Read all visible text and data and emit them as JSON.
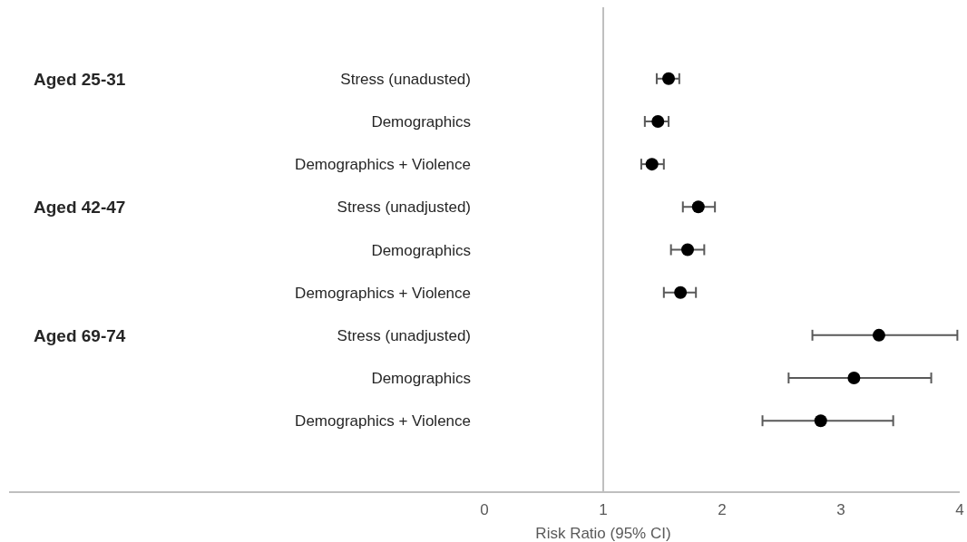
{
  "chart_data": {
    "type": "scatter",
    "orientation": "horizontal",
    "xlabel": "Risk Ratio (95% CI)",
    "categories": [
      "Stress (unadusted)",
      "Demographics",
      "Demographics + Violence",
      "Stress (unadjusted)",
      "Demographics",
      "Demographics + Violence",
      "Stress (unadjusted)",
      "Demographics",
      "Demographics + Violence"
    ],
    "series": [
      {
        "color": "#000000",
        "values": [
          1.55,
          1.46,
          1.41,
          1.8,
          1.71,
          1.65,
          3.32,
          3.11,
          2.83
        ],
        "errors": [
          [
            1.45,
            1.64
          ],
          [
            1.35,
            1.55
          ],
          [
            1.32,
            1.51
          ],
          [
            1.67,
            1.94
          ],
          [
            1.57,
            1.85
          ],
          [
            1.51,
            1.78
          ],
          [
            2.76,
            3.98
          ],
          [
            2.56,
            3.76
          ],
          [
            2.34,
            3.44
          ]
        ]
      }
    ],
    "xlim": [
      -4,
      4
    ],
    "xticks": [
      0,
      1,
      2,
      3,
      4
    ],
    "marker": "circle",
    "grid": false,
    "ref_lines": [
      {
        "axis": "x",
        "value": 1,
        "color": "#bfbfbf"
      }
    ],
    "annotations": [
      "Aged 25-31",
      "Aged 42-47",
      "Aged 69-74"
    ]
  }
}
